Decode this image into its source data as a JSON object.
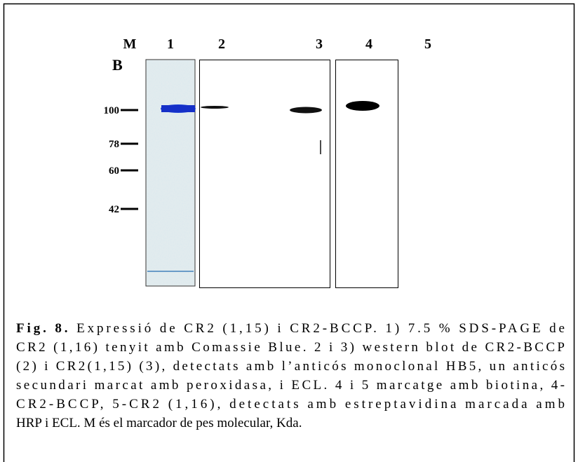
{
  "figure": {
    "panel": "B",
    "lanes": [
      "M",
      "1",
      "2",
      "3",
      "4",
      "5"
    ],
    "markers": [
      "100",
      "78",
      "60",
      "42"
    ]
  },
  "caption": {
    "label": "Fig. 8.",
    "lines": [
      " Expressió de CR2 (1,15) i CR2-BCCP. 1) 7.5 % SDS-PAGE de",
      "CR2 (1,16) tenyit amb Comassie Blue. 2 i 3) western blot de CR2-BCCP",
      "(2) i CR2(1,15) (3), detectats amb l’anticós monoclonal HB5, un anticós",
      "secundari marcat amb peroxidasa, i ECL. 4 i 5 marcatge amb biotina, 4-",
      "CR2-BCCP, 5-CR2 (1,16), detectats amb estreptavidina marcada amb",
      "HRP  i ECL. M és el marcador de pes molecular, Kda."
    ]
  }
}
